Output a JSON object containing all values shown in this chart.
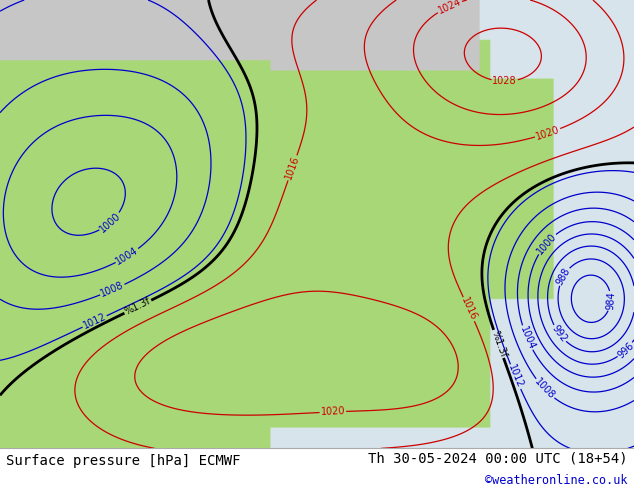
{
  "title_left": "Surface pressure [hPa] ECMWF",
  "title_right": "Th 30-05-2024 00:00 UTC (18+54)",
  "copyright": "©weatheronline.co.uk",
  "land_color_rgb": [
    0.659,
    0.847,
    0.471
  ],
  "sea_color_rgb": [
    0.847,
    0.898,
    0.922
  ],
  "gray_color_rgb": [
    0.78,
    0.78,
    0.78
  ],
  "bottom_bar_color": "#f0f0f0",
  "label_color_black": "#000000",
  "label_color_red": "#cc0000",
  "label_color_blue": "#0000cc",
  "contour_color_black": "#000000",
  "contour_color_red": "#cc0000",
  "contour_color_blue": "#0000cc",
  "font_size_title": 10,
  "figsize": [
    6.34,
    4.9
  ],
  "dpi": 100
}
